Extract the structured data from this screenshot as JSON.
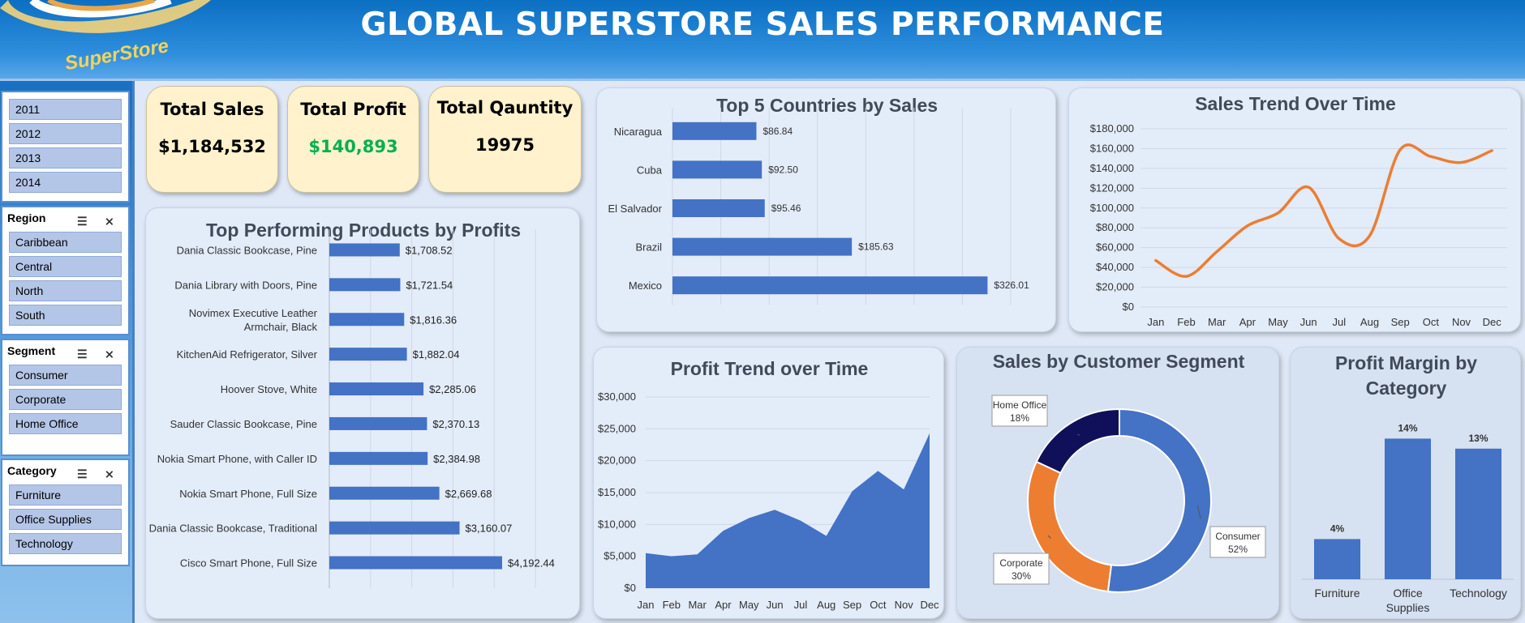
{
  "header": {
    "title": "GLOBAL SUPERSTORE SALES PERFORMANCE",
    "logo_text": "SuperStore"
  },
  "colors": {
    "bar": "#4472c4",
    "line": "#ed7d31",
    "consumer": "#4472c4",
    "corporate": "#ed7d31",
    "home_office": "#10105a",
    "profit_green": "#00b050"
  },
  "slicers": {
    "year": {
      "items": [
        "2011",
        "2012",
        "2013",
        "2014"
      ]
    },
    "region": {
      "title": "Region",
      "items": [
        "Caribbean",
        "Central",
        "North",
        "South"
      ]
    },
    "segment": {
      "title": "Segment",
      "items": [
        "Consumer",
        "Corporate",
        "Home Office"
      ]
    },
    "category": {
      "title": "Category",
      "items": [
        "Furniture",
        "Office Supplies",
        "Technology"
      ]
    },
    "multiselect_icon": "multi-select-icon",
    "clear_icon": "clear-filter-icon"
  },
  "kpis": {
    "sales": {
      "label": "Total Sales",
      "value": "$1,184,532"
    },
    "profit": {
      "label": "Total Profit",
      "value": "$140,893"
    },
    "quantity": {
      "label": "Total Qauntity",
      "value": "19975"
    }
  },
  "chart_data": [
    {
      "id": "products",
      "type": "bar",
      "orientation": "horizontal",
      "title": "Top Performing Products by Profits",
      "categories": [
        "Dania Classic Bookcase, Pine",
        "Dania Library with Doors, Pine",
        "Novimex Executive Leather Armchair, Black",
        "KitchenAid Refrigerator, Silver",
        "Hoover Stove, White",
        "Sauder Classic Bookcase, Pine",
        "Nokia Smart Phone, with Caller ID",
        "Nokia Smart Phone, Full Size",
        "Dania Classic Bookcase, Traditional",
        "Cisco Smart Phone, Full Size"
      ],
      "category_lines": [
        [
          "Dania Classic Bookcase, Pine"
        ],
        [
          "Dania Library with Doors, Pine"
        ],
        [
          "Novimex Executive Leather",
          "Armchair, Black"
        ],
        [
          "KitchenAid Refrigerator, Silver"
        ],
        [
          "Hoover Stove, White"
        ],
        [
          "Sauder Classic Bookcase, Pine"
        ],
        [
          "Nokia Smart Phone, with Caller ID"
        ],
        [
          "Nokia Smart Phone, Full Size"
        ],
        [
          "Dania Classic Bookcase, Traditional"
        ],
        [
          "Cisco Smart Phone, Full Size"
        ]
      ],
      "values": [
        1708.52,
        1721.54,
        1816.36,
        1882.04,
        2285.06,
        2370.13,
        2384.98,
        2669.68,
        3160.07,
        4192.44
      ],
      "labels": [
        "$1,708.52",
        "$1,721.54",
        "$1,816.36",
        "$1,882.04",
        "$2,285.06",
        "$2,370.13",
        "$2,384.98",
        "$2,669.68",
        "$3,160.07",
        "$4,192.44"
      ],
      "xlim": [
        0,
        5000
      ]
    },
    {
      "id": "countries",
      "type": "bar",
      "orientation": "horizontal",
      "title": "Top 5 Countries by Sales",
      "categories": [
        "Nicaragua",
        "Cuba",
        "El Salvador",
        "Brazil",
        "Mexico"
      ],
      "values": [
        86.84,
        92.5,
        95.46,
        185.63,
        326.01
      ],
      "labels": [
        "$86.84",
        "$92.50",
        "$95.46",
        "$185.63",
        "$326.01"
      ],
      "xlim": [
        0,
        350
      ]
    },
    {
      "id": "sales_trend",
      "type": "line",
      "title": "Sales Trend Over Time",
      "x": [
        "Jan",
        "Feb",
        "Mar",
        "Apr",
        "May",
        "Jun",
        "Jul",
        "Aug",
        "Sep",
        "Oct",
        "Nov",
        "Dec"
      ],
      "y": [
        47000,
        31000,
        56000,
        82000,
        95000,
        121000,
        69000,
        72000,
        159000,
        152000,
        146000,
        158000
      ],
      "ylim": [
        0,
        180000
      ],
      "yticks": [
        "$0",
        "$20,000",
        "$40,000",
        "$60,000",
        "$80,000",
        "$100,000",
        "$120,000",
        "$140,000",
        "$160,000",
        "$180,000"
      ]
    },
    {
      "id": "profit_trend",
      "type": "area",
      "title": "Profit Trend over Time",
      "x": [
        "Jan",
        "Feb",
        "Mar",
        "Apr",
        "May",
        "Jun",
        "Jul",
        "Aug",
        "Sep",
        "Oct",
        "Nov",
        "Dec"
      ],
      "y": [
        5500,
        5000,
        5300,
        9000,
        11000,
        12300,
        10600,
        8200,
        15200,
        18400,
        15500,
        24300
      ],
      "ylim": [
        0,
        30000
      ],
      "yticks": [
        "$0",
        "$5,000",
        "$10,000",
        "$15,000",
        "$20,000",
        "$25,000",
        "$30,000"
      ]
    },
    {
      "id": "segment",
      "type": "pie",
      "title": "Sales by Customer Segment",
      "categories": [
        "Consumer",
        "Corporate",
        "Home Office"
      ],
      "values": [
        52,
        30,
        18
      ],
      "labels": [
        "52%",
        "30%",
        "18%"
      ]
    },
    {
      "id": "margin",
      "type": "bar",
      "title": "Profit Margin by Category",
      "title_lines": [
        "Profit Margin by",
        "Category"
      ],
      "categories": [
        "Furniture",
        "Office Supplies",
        "Technology"
      ],
      "category_lines": [
        [
          "Furniture"
        ],
        [
          "Office",
          "Supplies"
        ],
        [
          "Technology"
        ]
      ],
      "values": [
        4,
        14,
        13
      ],
      "labels": [
        "4%",
        "14%",
        "13%"
      ],
      "ylim": [
        0,
        15
      ]
    }
  ]
}
